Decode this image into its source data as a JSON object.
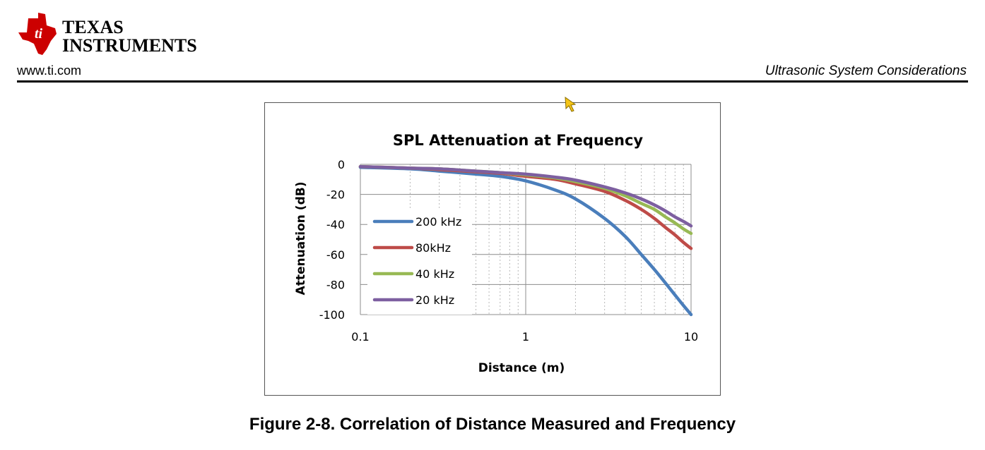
{
  "header": {
    "logo_line1": "TEXAS",
    "logo_line2": "INSTRUMENTS",
    "url": "www.ti.com",
    "section_title": "Ultrasonic System Considerations"
  },
  "colors": {
    "logo_red": "#cc0000"
  },
  "chart_data": {
    "type": "line",
    "title": "SPL Attenuation at Frequency",
    "xlabel": "Distance (m)",
    "ylabel": "Attenuation (dB)",
    "x_scale": "log",
    "xlim": [
      0.1,
      10
    ],
    "ylim": [
      -100,
      0
    ],
    "x_ticks": [
      "0.1",
      "1",
      "10"
    ],
    "y_ticks": [
      "0",
      "-20",
      "-40",
      "-60",
      "-80",
      "-100"
    ],
    "grid": true,
    "legend_position": "left",
    "series": [
      {
        "name": "200 kHz",
        "color": "#4a7ebb",
        "x": [
          0.1,
          0.2,
          0.3,
          0.5,
          0.7,
          1,
          1.5,
          2,
          3,
          4,
          5,
          6,
          7,
          8,
          9,
          10
        ],
        "y": [
          -2,
          -3,
          -4.5,
          -6.5,
          -8,
          -11,
          -17,
          -23,
          -36,
          -48,
          -60,
          -70,
          -79,
          -87,
          -94,
          -100
        ]
      },
      {
        "name": "80kHz",
        "color": "#be4b48",
        "x": [
          0.1,
          0.2,
          0.3,
          0.5,
          0.7,
          1,
          1.5,
          2,
          3,
          4,
          5,
          6,
          7,
          8,
          9,
          10
        ],
        "y": [
          -1.5,
          -2.5,
          -3.5,
          -5,
          -6,
          -8,
          -10,
          -13,
          -18,
          -24,
          -30,
          -36,
          -42,
          -47,
          -52,
          -56
        ]
      },
      {
        "name": "40 kHz",
        "color": "#98b954",
        "x": [
          0.1,
          0.2,
          0.3,
          0.5,
          0.7,
          1,
          1.5,
          2,
          3,
          4,
          5,
          6,
          7,
          8,
          9,
          10
        ],
        "y": [
          -1.5,
          -2.5,
          -3,
          -4.5,
          -5.5,
          -7,
          -9,
          -11.5,
          -16,
          -21,
          -26,
          -30,
          -35,
          -39,
          -43,
          -46
        ]
      },
      {
        "name": "20 kHz",
        "color": "#7d5fa0",
        "x": [
          0.1,
          0.2,
          0.3,
          0.5,
          0.7,
          1,
          1.5,
          2,
          3,
          4,
          5,
          6,
          7,
          8,
          9,
          10
        ],
        "y": [
          -1.5,
          -2.5,
          -3,
          -4.5,
          -5.5,
          -6.5,
          -8.5,
          -10.5,
          -15,
          -19,
          -23,
          -27,
          -31,
          -35,
          -38,
          -41
        ]
      }
    ]
  },
  "figure_caption": "Figure 2-8. Correlation of Distance Measured and Frequency"
}
